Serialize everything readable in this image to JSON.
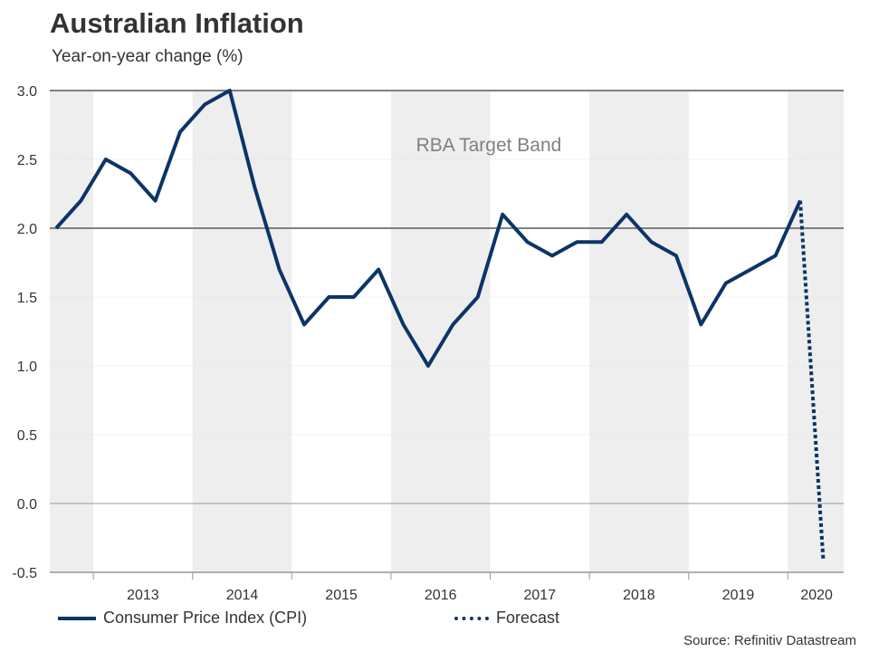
{
  "title": "Australian Inflation",
  "subtitle": "Year-on-year change (%)",
  "annotation": "RBA Target Band",
  "source": "Source: Refinitiv Datastream",
  "legend": {
    "cpi": "Consumer Price Index (CPI)",
    "forecast": "Forecast"
  },
  "colors": {
    "line": "#0b3566",
    "shade": "#eeeeee",
    "band_line": "#808080",
    "annotation": "#808080"
  },
  "chart_data": {
    "type": "line",
    "title": "Australian Inflation",
    "subtitle": "Year-on-year change (%)",
    "ylim": [
      -0.5,
      3.0
    ],
    "yticks": [
      "3.0",
      "2.5",
      "2.0",
      "1.5",
      "1.0",
      "0.5",
      "0.0",
      "-0.5"
    ],
    "year_labels": [
      "2013",
      "2014",
      "2015",
      "2016",
      "2017",
      "2018",
      "2019",
      "2020"
    ],
    "target_band": [
      2.0,
      3.0
    ],
    "x": [
      "2012-Q3",
      "2012-Q4",
      "2013-Q1",
      "2013-Q2",
      "2013-Q3",
      "2013-Q4",
      "2014-Q1",
      "2014-Q2",
      "2014-Q3",
      "2014-Q4",
      "2015-Q1",
      "2015-Q2",
      "2015-Q3",
      "2015-Q4",
      "2016-Q1",
      "2016-Q2",
      "2016-Q3",
      "2016-Q4",
      "2017-Q1",
      "2017-Q2",
      "2017-Q3",
      "2017-Q4",
      "2018-Q1",
      "2018-Q2",
      "2018-Q3",
      "2018-Q4",
      "2019-Q1",
      "2019-Q2",
      "2019-Q3",
      "2019-Q4",
      "2020-Q1"
    ],
    "series": [
      {
        "name": "Consumer Price Index (CPI)",
        "values": [
          2.0,
          2.2,
          2.5,
          2.4,
          2.2,
          2.7,
          2.9,
          3.0,
          2.3,
          1.7,
          1.3,
          1.5,
          1.5,
          1.7,
          1.3,
          1.0,
          1.3,
          1.5,
          2.1,
          1.9,
          1.8,
          1.9,
          1.9,
          2.1,
          1.9,
          1.8,
          1.3,
          1.6,
          1.7,
          1.8,
          2.2
        ]
      },
      {
        "name": "Forecast",
        "x": [
          "2020-Q1",
          "2020-Q2"
        ],
        "values": [
          2.2,
          -0.4
        ]
      }
    ]
  }
}
